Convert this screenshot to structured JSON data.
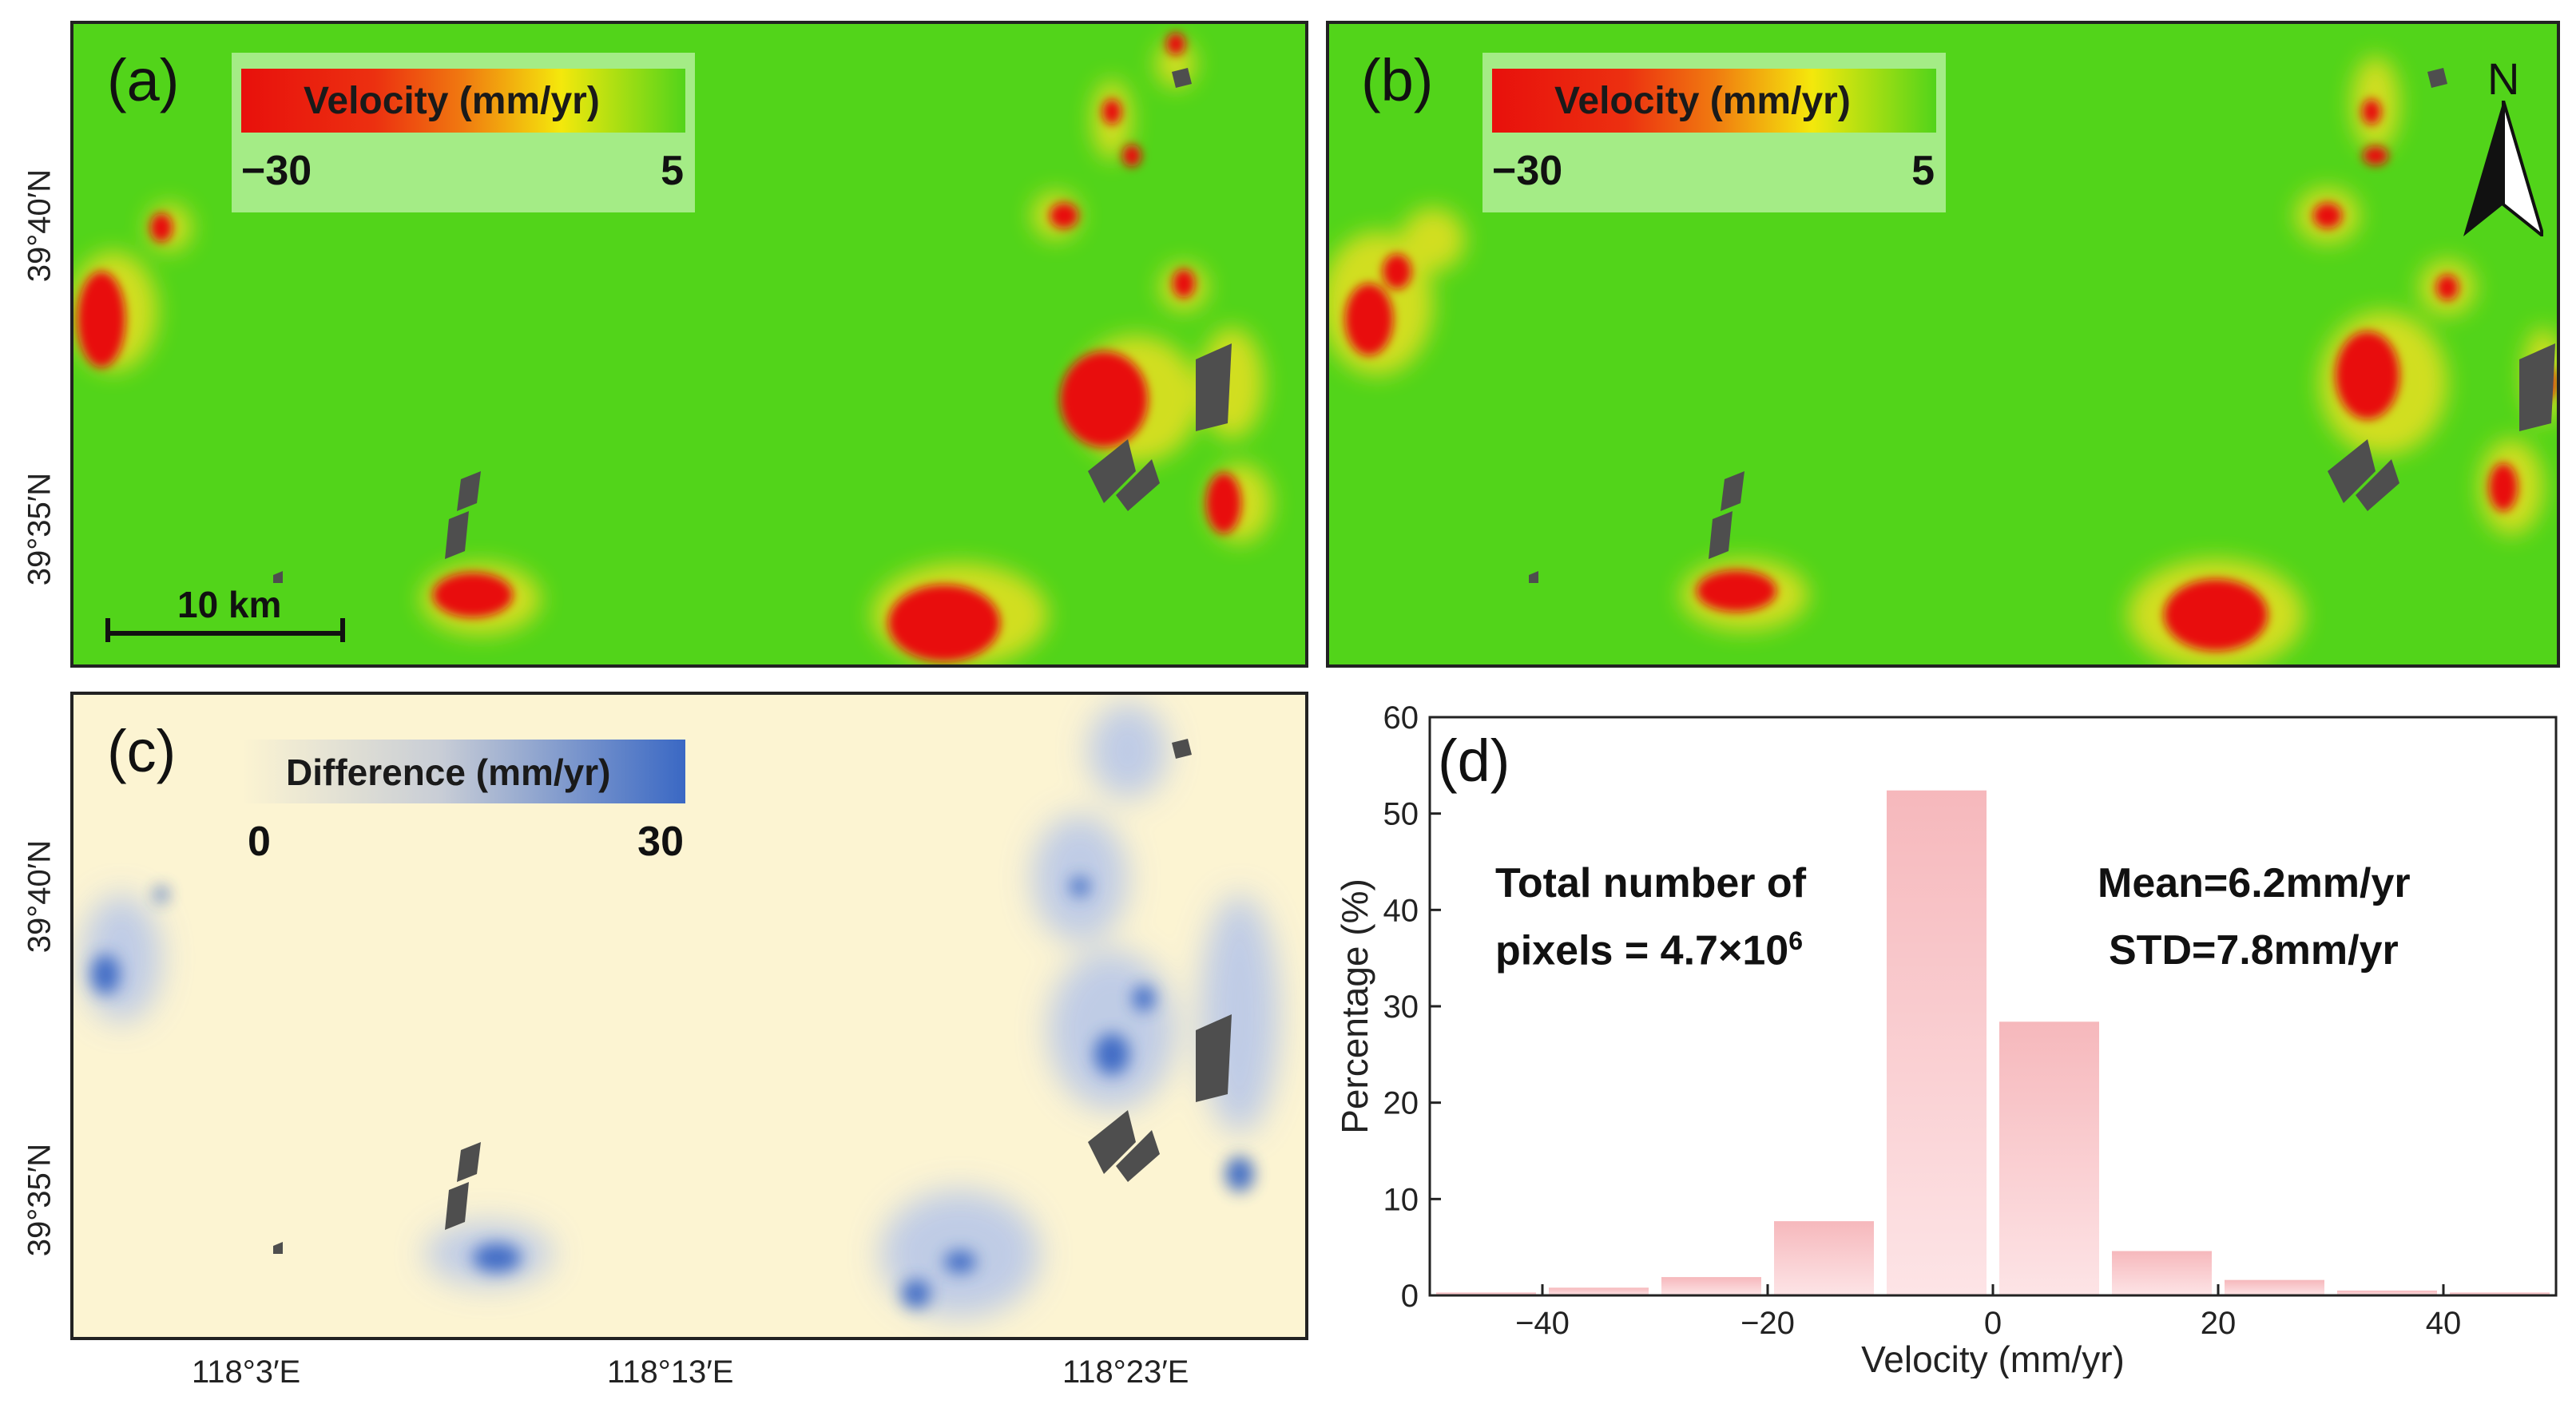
{
  "panels": {
    "a": {
      "label": "(a)",
      "legend_title": "Velocity (mm/yr)",
      "legend_min": "−30",
      "legend_max": "5",
      "scalebar": "10 km"
    },
    "b": {
      "label": "(b)",
      "legend_title": "Velocity (mm/yr)",
      "legend_min": "−30",
      "legend_max": "5",
      "north": "N"
    },
    "c": {
      "label": "(c)",
      "legend_title": "Difference (mm/yr)",
      "legend_min": "0",
      "legend_max": "30"
    },
    "d": {
      "label": "(d)",
      "stats_left_line1": "Total number of",
      "stats_left_line2a": "pixels = 4.7×10",
      "stats_left_exp": "6",
      "stats_right_line1": "Mean=6.2mm/yr",
      "stats_right_line2": "STD=7.8mm/yr"
    }
  },
  "axes": {
    "lat_labels": [
      "39°40′N",
      "39°35′N"
    ],
    "lon_labels": [
      "118°3′E",
      "118°13′E",
      "118°23′E"
    ]
  },
  "colors": {
    "velocity_ramp": [
      "#e8100c",
      "#f07a10",
      "#f4e80c",
      "#52d41a"
    ],
    "difference_ramp": [
      "#fcf4d2",
      "#3a68c4"
    ],
    "hist_bar": "#f6b8bc",
    "map_green": "#52d41a",
    "map_cream": "#fcf4d2"
  },
  "chart_data": {
    "type": "bar",
    "title": "(d)",
    "xlabel": "Velocity (mm/yr)",
    "ylabel": "Percentage (%)",
    "xlim": [
      -50,
      50
    ],
    "ylim": [
      0,
      60
    ],
    "xticks": [
      -40,
      -20,
      0,
      20,
      40
    ],
    "yticks": [
      0,
      10,
      20,
      30,
      40,
      50,
      60
    ],
    "bin_width": 10,
    "x": [
      -45,
      -35,
      -25,
      -15,
      -5,
      5,
      15,
      25,
      35,
      45
    ],
    "values": [
      0.3,
      0.8,
      1.9,
      7.7,
      52.4,
      28.4,
      4.6,
      1.6,
      0.5,
      0.3
    ]
  }
}
